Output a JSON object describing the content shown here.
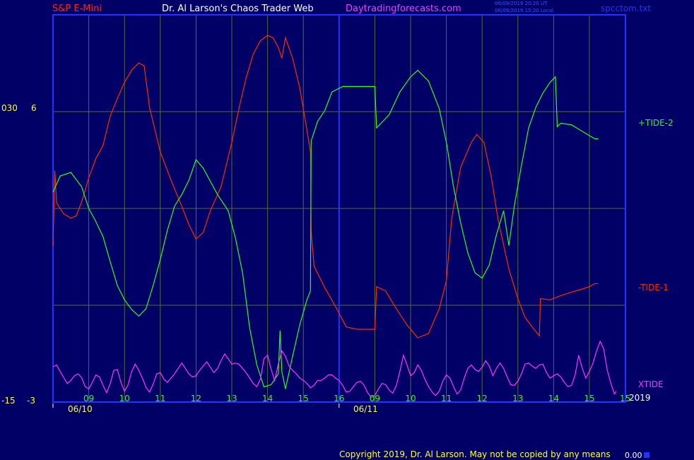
{
  "header": {
    "symbol": "S&P E-Mini",
    "title": "Dr. Al Larson's Chaos Trader Web",
    "site": "Daytradingforecasts.com",
    "time_ut": "06/09/2019 20:20 UT",
    "time_local": "06/09/2019 15:20 Local",
    "file": "spcctom.txt"
  },
  "footer": {
    "copyright": "Copyright 2019, Dr. Al Larson. May not be copied by any means",
    "readout": "0.00"
  },
  "colors": {
    "background": "#000066",
    "frame": "#2233ff",
    "grid": "#556b2f",
    "tide1": "#ff2a00",
    "tide2": "#22ff22",
    "xtide": "#ff33ff",
    "axis_text": "#ffff33"
  },
  "chart_data": {
    "type": "line",
    "left_axis": {
      "outer_labels": [
        "030",
        "-15"
      ],
      "inner_labels": [
        "6",
        "-3"
      ]
    },
    "x_tick_labels": [
      "09",
      "10",
      "11",
      "12",
      "13",
      "14",
      "15",
      "16",
      "09",
      "10",
      "11",
      "12",
      "13",
      "14",
      "15",
      "15"
    ],
    "dates": [
      "06/10",
      "06/11"
    ],
    "year": "2019",
    "x_range": [
      0,
      16
    ],
    "y_range": [
      0,
      100
    ],
    "grid": true,
    "series": [
      {
        "name": "-TIDE-1",
        "color": "#ff2a00",
        "points": [
          [
            0.0,
            40.3
          ],
          [
            0.05,
            59.8
          ],
          [
            0.1,
            51.4
          ],
          [
            0.3,
            48.6
          ],
          [
            0.5,
            47.5
          ],
          [
            0.65,
            48.1
          ],
          [
            0.8,
            51.7
          ],
          [
            1.0,
            57.9
          ],
          [
            1.2,
            62.9
          ],
          [
            1.4,
            66.3
          ],
          [
            1.6,
            73.9
          ],
          [
            1.8,
            78.4
          ],
          [
            2.0,
            82.6
          ],
          [
            2.2,
            85.7
          ],
          [
            2.4,
            87.6
          ],
          [
            2.55,
            86.8
          ],
          [
            2.7,
            76.1
          ],
          [
            3.0,
            64.6
          ],
          [
            3.3,
            57.3
          ],
          [
            3.6,
            50.6
          ],
          [
            3.8,
            45.8
          ],
          [
            4.0,
            42.1
          ],
          [
            4.2,
            43.8
          ],
          [
            4.4,
            49.4
          ],
          [
            4.7,
            55.6
          ],
          [
            5.0,
            67.1
          ],
          [
            5.2,
            75.8
          ],
          [
            5.4,
            83.7
          ],
          [
            5.6,
            89.9
          ],
          [
            5.8,
            93.3
          ],
          [
            6.0,
            94.7
          ],
          [
            6.15,
            94.1
          ],
          [
            6.3,
            91.6
          ],
          [
            6.4,
            88.8
          ],
          [
            6.5,
            94.1
          ],
          [
            6.7,
            88.8
          ],
          [
            6.9,
            81.2
          ],
          [
            7.1,
            70.2
          ],
          [
            7.2,
            64.6
          ],
          [
            7.22,
            44.1
          ],
          [
            7.3,
            35.1
          ],
          [
            7.6,
            29.5
          ],
          [
            7.9,
            24.7
          ],
          [
            8.2,
            19.4
          ],
          [
            8.5,
            18.8
          ],
          [
            8.8,
            18.8
          ],
          [
            9.0,
            18.8
          ],
          [
            9.05,
            29.8
          ],
          [
            9.3,
            28.7
          ],
          [
            9.6,
            24.1
          ],
          [
            9.9,
            19.9
          ],
          [
            10.2,
            16.6
          ],
          [
            10.5,
            17.7
          ],
          [
            10.8,
            24.1
          ],
          [
            11.0,
            31.3
          ],
          [
            11.15,
            47.5
          ],
          [
            11.4,
            60.6
          ],
          [
            11.7,
            67.1
          ],
          [
            11.85,
            69.1
          ],
          [
            12.05,
            67.1
          ],
          [
            12.25,
            58.4
          ],
          [
            12.45,
            46.9
          ],
          [
            12.75,
            34.3
          ],
          [
            13.0,
            26.7
          ],
          [
            13.2,
            21.9
          ],
          [
            13.4,
            19.4
          ],
          [
            13.6,
            17.1
          ],
          [
            13.63,
            26.7
          ],
          [
            13.9,
            26.4
          ],
          [
            14.2,
            27.5
          ],
          [
            14.5,
            28.4
          ],
          [
            14.8,
            29.2
          ],
          [
            15.0,
            29.8
          ],
          [
            15.15,
            30.6
          ],
          [
            15.25,
            30.6
          ]
        ]
      },
      {
        "name": "+TIDE-2",
        "color": "#22ff22",
        "points": [
          [
            0.0,
            54.2
          ],
          [
            0.2,
            58.4
          ],
          [
            0.5,
            59.3
          ],
          [
            0.8,
            55.6
          ],
          [
            1.0,
            50.0
          ],
          [
            1.2,
            46.6
          ],
          [
            1.4,
            42.7
          ],
          [
            1.6,
            36.2
          ],
          [
            1.8,
            30.1
          ],
          [
            2.0,
            26.4
          ],
          [
            2.2,
            23.9
          ],
          [
            2.4,
            22.2
          ],
          [
            2.6,
            24.1
          ],
          [
            2.8,
            30.1
          ],
          [
            3.0,
            36.8
          ],
          [
            3.2,
            44.4
          ],
          [
            3.4,
            50.6
          ],
          [
            3.6,
            53.6
          ],
          [
            3.8,
            57.3
          ],
          [
            4.0,
            62.6
          ],
          [
            4.2,
            60.4
          ],
          [
            4.4,
            57.0
          ],
          [
            4.6,
            53.6
          ],
          [
            4.9,
            49.4
          ],
          [
            5.1,
            42.4
          ],
          [
            5.3,
            33.4
          ],
          [
            5.5,
            19.1
          ],
          [
            5.7,
            9.6
          ],
          [
            5.9,
            3.9
          ],
          [
            6.1,
            4.5
          ],
          [
            6.3,
            7.3
          ],
          [
            6.35,
            18.5
          ],
          [
            6.4,
            7.9
          ],
          [
            6.5,
            3.4
          ],
          [
            6.7,
            11.8
          ],
          [
            6.9,
            19.9
          ],
          [
            7.1,
            26.4
          ],
          [
            7.2,
            28.7
          ],
          [
            7.22,
            67.4
          ],
          [
            7.4,
            72.5
          ],
          [
            7.6,
            75.3
          ],
          [
            7.8,
            80.1
          ],
          [
            8.1,
            81.5
          ],
          [
            8.4,
            81.5
          ],
          [
            8.7,
            81.5
          ],
          [
            9.0,
            81.5
          ],
          [
            9.05,
            70.8
          ],
          [
            9.4,
            74.2
          ],
          [
            9.7,
            80.1
          ],
          [
            10.0,
            84.0
          ],
          [
            10.2,
            85.7
          ],
          [
            10.5,
            82.9
          ],
          [
            10.8,
            75.8
          ],
          [
            11.0,
            67.1
          ],
          [
            11.2,
            55.6
          ],
          [
            11.4,
            46.3
          ],
          [
            11.6,
            38.5
          ],
          [
            11.8,
            33.4
          ],
          [
            12.0,
            32.0
          ],
          [
            12.2,
            35.4
          ],
          [
            12.4,
            43.2
          ],
          [
            12.6,
            49.4
          ],
          [
            12.75,
            40.4
          ],
          [
            12.9,
            50.6
          ],
          [
            13.1,
            61.2
          ],
          [
            13.3,
            70.8
          ],
          [
            13.5,
            76.1
          ],
          [
            13.7,
            79.8
          ],
          [
            13.9,
            82.6
          ],
          [
            14.05,
            84.0
          ],
          [
            14.1,
            71.1
          ],
          [
            14.2,
            72.0
          ],
          [
            14.5,
            71.6
          ],
          [
            14.8,
            69.9
          ],
          [
            15.0,
            68.8
          ],
          [
            15.15,
            68.0
          ],
          [
            15.25,
            68.0
          ]
        ]
      },
      {
        "name": "XTIDE",
        "color": "#ff33ff",
        "points": [
          [
            0.0,
            9.1
          ],
          [
            0.1,
            9.6
          ],
          [
            0.2,
            7.9
          ],
          [
            0.3,
            6.3
          ],
          [
            0.4,
            4.8
          ],
          [
            0.5,
            5.6
          ],
          [
            0.6,
            6.8
          ],
          [
            0.7,
            7.3
          ],
          [
            0.8,
            6.3
          ],
          [
            0.9,
            4.0
          ],
          [
            1.0,
            3.4
          ],
          [
            1.1,
            5.1
          ],
          [
            1.2,
            7.0
          ],
          [
            1.3,
            6.5
          ],
          [
            1.4,
            4.3
          ],
          [
            1.5,
            2.4
          ],
          [
            1.6,
            4.8
          ],
          [
            1.7,
            8.2
          ],
          [
            1.8,
            8.4
          ],
          [
            1.9,
            5.1
          ],
          [
            2.0,
            2.8
          ],
          [
            2.1,
            4.5
          ],
          [
            2.2,
            7.9
          ],
          [
            2.3,
            9.8
          ],
          [
            2.4,
            8.2
          ],
          [
            2.5,
            6.2
          ],
          [
            2.6,
            3.8
          ],
          [
            2.7,
            2.6
          ],
          [
            2.8,
            4.6
          ],
          [
            2.9,
            7.3
          ],
          [
            3.0,
            7.6
          ],
          [
            3.1,
            5.9
          ],
          [
            3.2,
            5.1
          ],
          [
            3.3,
            6.2
          ],
          [
            3.4,
            7.3
          ],
          [
            3.5,
            8.7
          ],
          [
            3.6,
            10.1
          ],
          [
            3.7,
            8.7
          ],
          [
            3.8,
            7.3
          ],
          [
            3.9,
            6.5
          ],
          [
            4.0,
            6.8
          ],
          [
            4.1,
            8.2
          ],
          [
            4.2,
            9.3
          ],
          [
            4.3,
            10.4
          ],
          [
            4.4,
            9.0
          ],
          [
            4.5,
            7.6
          ],
          [
            4.6,
            8.7
          ],
          [
            4.7,
            10.7
          ],
          [
            4.8,
            12.4
          ],
          [
            4.9,
            11.2
          ],
          [
            5.0,
            9.8
          ],
          [
            5.1,
            10.1
          ],
          [
            5.2,
            9.8
          ],
          [
            5.3,
            8.7
          ],
          [
            5.4,
            7.6
          ],
          [
            5.5,
            6.2
          ],
          [
            5.6,
            4.8
          ],
          [
            5.7,
            4.0
          ],
          [
            5.8,
            5.9
          ],
          [
            5.9,
            11.2
          ],
          [
            6.0,
            12.1
          ],
          [
            6.1,
            8.4
          ],
          [
            6.2,
            5.6
          ],
          [
            6.3,
            9.8
          ],
          [
            6.4,
            13.2
          ],
          [
            6.5,
            11.8
          ],
          [
            6.6,
            9.3
          ],
          [
            6.7,
            8.2
          ],
          [
            6.8,
            7.3
          ],
          [
            6.9,
            6.2
          ],
          [
            7.0,
            5.6
          ],
          [
            7.1,
            4.8
          ],
          [
            7.2,
            3.7
          ],
          [
            7.3,
            4.3
          ],
          [
            7.4,
            5.6
          ],
          [
            7.5,
            5.6
          ],
          [
            7.6,
            6.2
          ],
          [
            7.7,
            7.0
          ],
          [
            7.8,
            7.0
          ],
          [
            7.9,
            6.2
          ],
          [
            8.0,
            5.6
          ],
          [
            8.1,
            4.3
          ],
          [
            8.2,
            2.6
          ],
          [
            8.3,
            2.8
          ],
          [
            8.4,
            4.0
          ],
          [
            8.5,
            5.1
          ],
          [
            8.6,
            5.4
          ],
          [
            8.7,
            4.3
          ],
          [
            8.8,
            2.4
          ],
          [
            8.9,
            1.2
          ],
          [
            9.0,
            1.7
          ],
          [
            9.1,
            3.4
          ],
          [
            9.2,
            4.8
          ],
          [
            9.3,
            4.5
          ],
          [
            9.4,
            3.1
          ],
          [
            9.5,
            2.3
          ],
          [
            9.6,
            4.3
          ],
          [
            9.7,
            7.9
          ],
          [
            9.8,
            12.1
          ],
          [
            9.9,
            9.6
          ],
          [
            10.0,
            6.8
          ],
          [
            10.1,
            7.6
          ],
          [
            10.2,
            9.6
          ],
          [
            10.3,
            8.2
          ],
          [
            10.4,
            5.9
          ],
          [
            10.5,
            4.0
          ],
          [
            10.6,
            2.6
          ],
          [
            10.7,
            1.7
          ],
          [
            10.8,
            2.8
          ],
          [
            10.9,
            5.4
          ],
          [
            11.0,
            7.0
          ],
          [
            11.1,
            6.2
          ],
          [
            11.2,
            4.0
          ],
          [
            11.3,
            2.1
          ],
          [
            11.4,
            3.1
          ],
          [
            11.5,
            6.2
          ],
          [
            11.6,
            8.7
          ],
          [
            11.7,
            9.6
          ],
          [
            11.8,
            8.4
          ],
          [
            11.9,
            7.9
          ],
          [
            12.0,
            9.0
          ],
          [
            12.1,
            10.7
          ],
          [
            12.2,
            9.3
          ],
          [
            12.3,
            6.8
          ],
          [
            12.4,
            8.7
          ],
          [
            12.5,
            10.1
          ],
          [
            12.6,
            8.7
          ],
          [
            12.7,
            6.5
          ],
          [
            12.8,
            4.5
          ],
          [
            12.9,
            4.3
          ],
          [
            13.0,
            5.4
          ],
          [
            13.1,
            7.3
          ],
          [
            13.2,
            9.8
          ],
          [
            13.3,
            10.1
          ],
          [
            13.4,
            9.3
          ],
          [
            13.5,
            8.7
          ],
          [
            13.6,
            9.6
          ],
          [
            13.7,
            9.8
          ],
          [
            13.8,
            7.6
          ],
          [
            13.9,
            6.2
          ],
          [
            14.0,
            6.8
          ],
          [
            14.1,
            7.3
          ],
          [
            14.2,
            6.5
          ],
          [
            14.3,
            5.1
          ],
          [
            14.4,
            4.0
          ],
          [
            14.5,
            4.3
          ],
          [
            14.6,
            7.0
          ],
          [
            14.7,
            12.1
          ],
          [
            14.8,
            8.7
          ],
          [
            14.9,
            6.2
          ],
          [
            15.0,
            7.9
          ],
          [
            15.1,
            10.1
          ],
          [
            15.2,
            13.2
          ],
          [
            15.3,
            15.7
          ],
          [
            15.4,
            13.8
          ],
          [
            15.5,
            8.2
          ],
          [
            15.6,
            4.8
          ],
          [
            15.7,
            2.1
          ],
          [
            15.75,
            2.8
          ]
        ]
      }
    ],
    "series_labels": [
      "+TIDE-2",
      "-TIDE-1",
      "XTIDE"
    ]
  }
}
